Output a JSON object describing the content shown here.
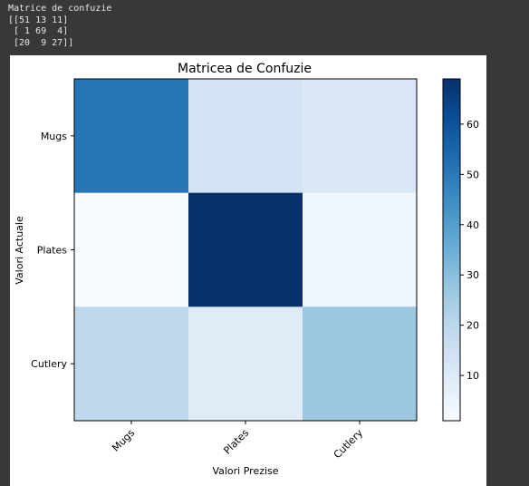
{
  "console_output": {
    "lines": [
      "Matrice de confuzie",
      "[[51 13 11]",
      " [ 1 69  4]",
      " [20  9 27]]"
    ]
  },
  "chart_data": {
    "type": "heatmap",
    "title": "Matricea de Confuzie",
    "xlabel": "Valori Prezise",
    "ylabel": "Valori Actuale",
    "x_categories": [
      "Mugs",
      "Plates",
      "Cutlery"
    ],
    "y_categories": [
      "Mugs",
      "Plates",
      "Cutlery"
    ],
    "values": [
      [
        51,
        13,
        11
      ],
      [
        1,
        69,
        4
      ],
      [
        20,
        9,
        27
      ]
    ],
    "colormap": "Blues",
    "colorbar": {
      "min": 1,
      "max": 69,
      "ticks": [
        10,
        20,
        30,
        40,
        50,
        60
      ]
    },
    "colors": {
      "low": "#f7fbff",
      "high": "#08306b"
    }
  }
}
